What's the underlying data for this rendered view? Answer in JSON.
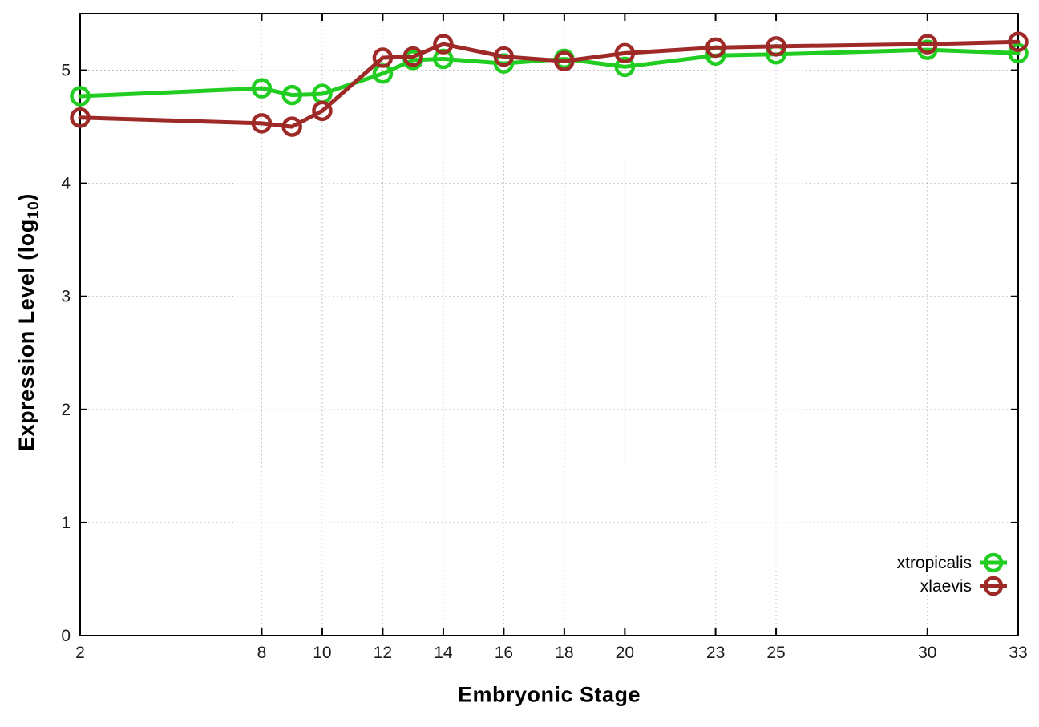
{
  "chart_data": {
    "type": "line",
    "title": "",
    "xlabel": "Embryonic Stage",
    "ylabel": "Expression Level (log10)",
    "ylabel_parts": {
      "prefix": "Expression Level (log",
      "sub": "10",
      "suffix": ")"
    },
    "x": [
      2,
      8,
      9,
      10,
      12,
      13,
      14,
      16,
      18,
      20,
      23,
      25,
      30,
      33
    ],
    "series": [
      {
        "name": "xtropicalis",
        "color": "#21cd21",
        "values": [
          4.77,
          4.84,
          4.78,
          4.79,
          4.97,
          5.09,
          5.1,
          5.06,
          5.1,
          5.03,
          5.13,
          5.14,
          5.18,
          5.15
        ]
      },
      {
        "name": "xlaevis",
        "color": "#9e2a28",
        "values": [
          4.58,
          4.53,
          4.5,
          4.64,
          5.11,
          5.12,
          5.23,
          5.12,
          5.08,
          5.15,
          5.2,
          5.21,
          5.23,
          5.25
        ]
      }
    ],
    "xticks": [
      2,
      8,
      10,
      12,
      14,
      16,
      18,
      20,
      23,
      25,
      30,
      33
    ],
    "yticks": [
      0,
      1,
      2,
      3,
      4,
      5
    ],
    "xlim": [
      2,
      33
    ],
    "ylim": [
      0,
      5.5
    ],
    "grid": true,
    "legend_position": "bottom-right",
    "marker": "open-circle",
    "background_color": "#ffffff",
    "grid_color": "#b5b5b5",
    "axis_color": "#000000",
    "tick_label_color": "#1a1a1a"
  }
}
